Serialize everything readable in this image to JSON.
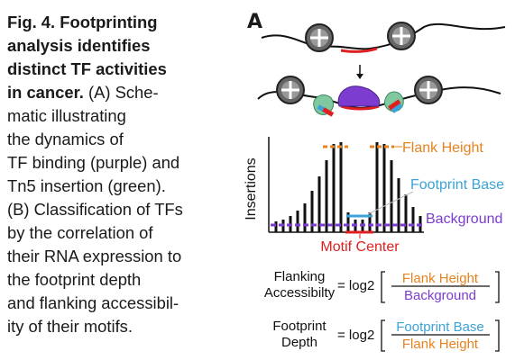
{
  "caption": {
    "lines": [
      {
        "bold": "Fig. 4. Footprinting",
        "rest": ""
      },
      {
        "bold": "analysis identifies",
        "rest": ""
      },
      {
        "bold": "distinct TF activities",
        "rest": ""
      },
      {
        "bold": "in cancer.",
        "rest": " (A) Sche-"
      },
      {
        "bold": "",
        "rest": "matic illustrating"
      },
      {
        "bold": "",
        "rest": "the dynamics of"
      },
      {
        "bold": "",
        "rest": "TF binding (purple) and"
      },
      {
        "bold": "",
        "rest": "Tn5 insertion (green)."
      },
      {
        "bold": "",
        "rest": "(B) Classification of TFs"
      },
      {
        "bold": "",
        "rest": "by the correlation of"
      },
      {
        "bold": "",
        "rest": "their RNA expression to"
      },
      {
        "bold": "",
        "rest": "the footprint depth"
      },
      {
        "bold": "",
        "rest": "and flanking accessibil-"
      },
      {
        "bold": "",
        "rest": "ity of their motifs."
      }
    ]
  },
  "panel": {
    "letter": "A",
    "ylabel": "Insertions",
    "labels": {
      "flank_height": "Flank Height",
      "footprint_base": "Footprint Base",
      "background": "Background",
      "motif_center": "Motif Center"
    }
  },
  "formulas": {
    "flanking": {
      "lhs_line1": "Flanking",
      "lhs_line2": "Accessibilty",
      "eq": "= log2",
      "num": "Flank Height",
      "den": "Background"
    },
    "footprint": {
      "lhs_line1": "Footprint",
      "lhs_line2": "Depth",
      "eq": "= log2",
      "num": "Footprint Base",
      "den": "Flank Height"
    }
  },
  "colors": {
    "orange": "#e8821e",
    "blue": "#3aa3d8",
    "purple": "#7b3ccf",
    "red": "#e02020",
    "green": "#7fc8a0",
    "black": "#111111"
  }
}
